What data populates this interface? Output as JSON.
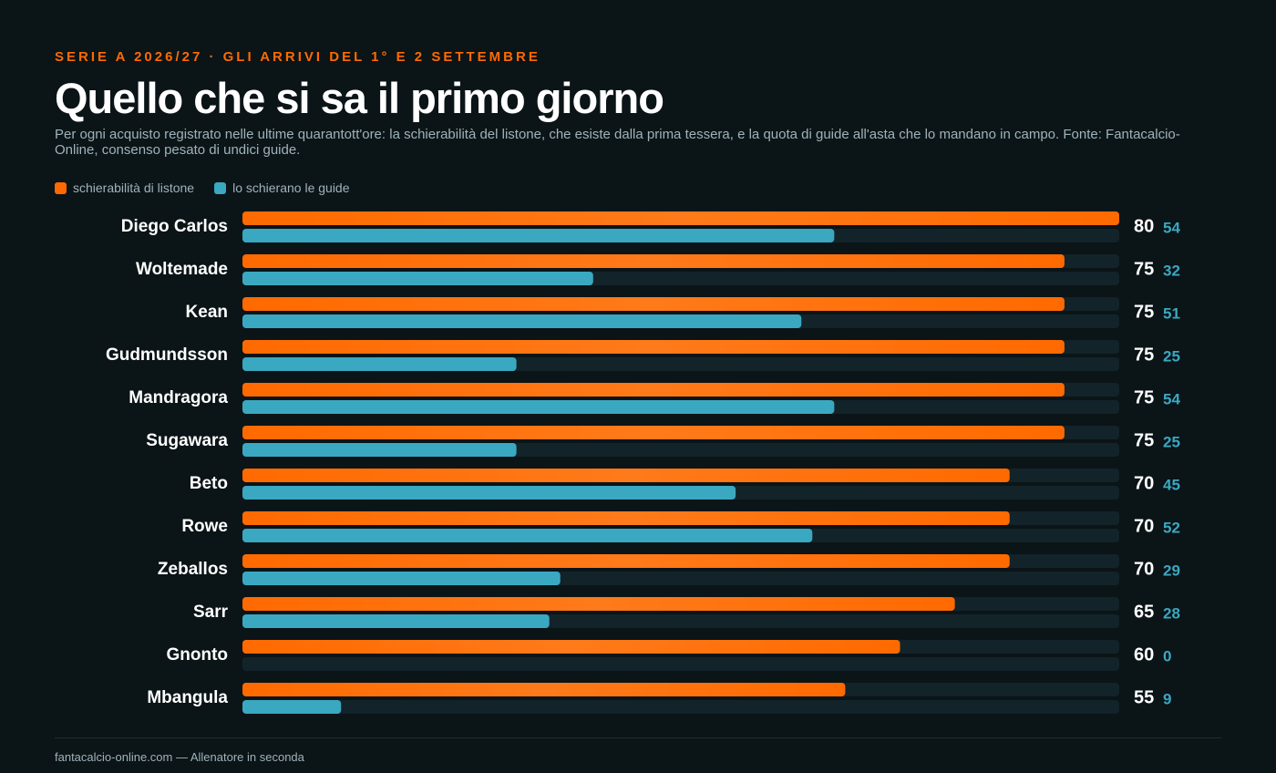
{
  "chart_data": {
    "type": "grouped-bar-horizontal",
    "kicker": "SERIE A 2026/27 · GLI ARRIVI DEL 1° E 2 SETTEMBRE",
    "title": "Quello che si sa il primo giorno",
    "subtitle": "Per ogni acquisto registrato nelle ultime quarantott'ore: la schierabilità del listone, che esiste dalla prima tessera, e la quota di guide all'asta che lo mandano in campo. Fonte: Fantacalcio-Online, consenso pesato di undici guide.",
    "categories": [
      "Diego Carlos",
      "Woltemade",
      "Kean",
      "Gudmundsson",
      "Mandragora",
      "Sugawara",
      "Beto",
      "Rowe",
      "Zeballos",
      "Sarr",
      "Gnonto",
      "Mbangula"
    ],
    "series": [
      {
        "name": "schierabilità di listone",
        "color": "#ff6a00",
        "values": [
          80,
          75,
          75,
          75,
          75,
          75,
          70,
          70,
          70,
          65,
          60,
          55
        ]
      },
      {
        "name": "lo schierano le guide",
        "color": "#3aa8c1",
        "values": [
          54,
          32,
          51,
          25,
          54,
          25,
          45,
          52,
          29,
          28,
          0,
          9
        ]
      }
    ],
    "xlim": [
      0,
      80
    ],
    "footer": "fantacalcio-online.com — Allenatore in seconda"
  }
}
